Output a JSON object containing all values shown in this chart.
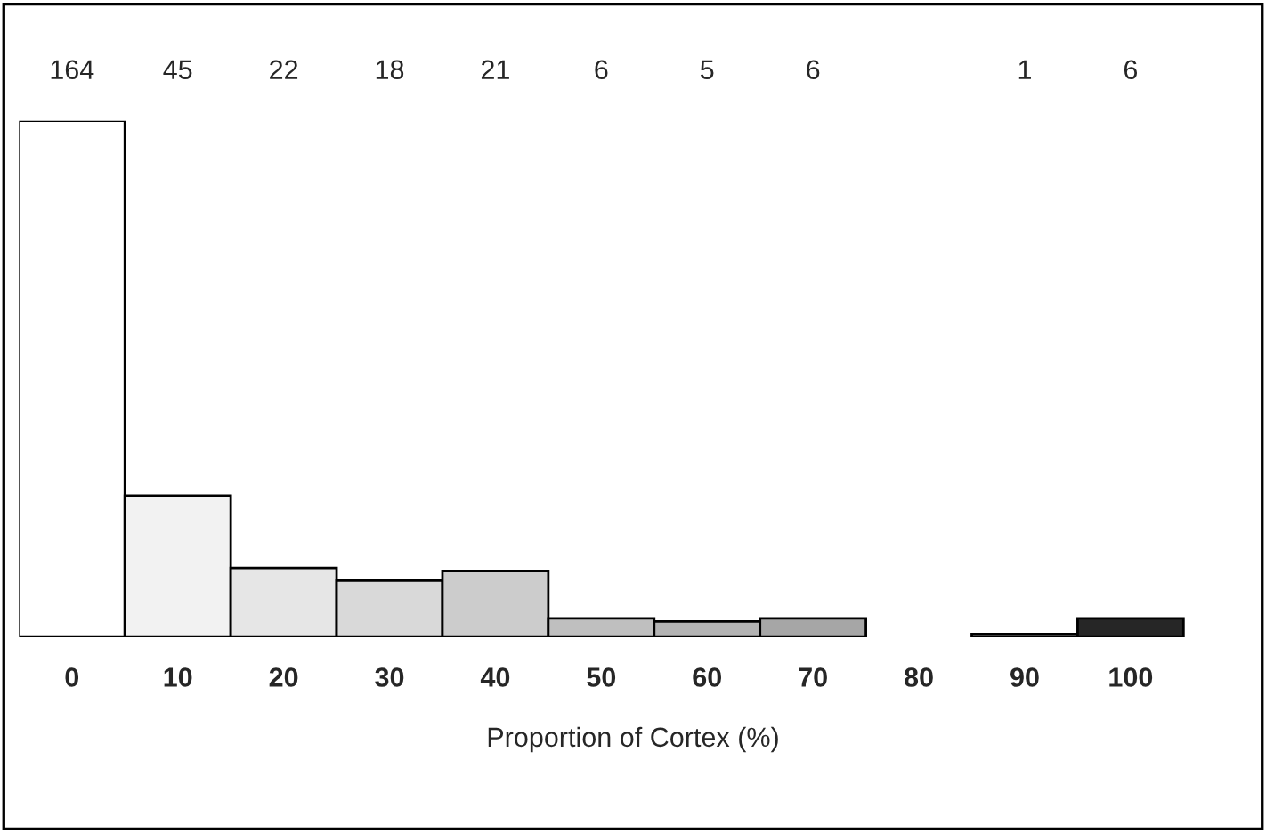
{
  "chart_data": {
    "type": "bar",
    "xlabel": "Proportion of Cortex (%)",
    "categories": [
      "0",
      "10",
      "20",
      "30",
      "40",
      "50",
      "60",
      "70",
      "80",
      "90",
      "100"
    ],
    "values": [
      164,
      45,
      22,
      18,
      21,
      6,
      5,
      6,
      null,
      1,
      6
    ],
    "value_labels": [
      "164",
      "45",
      "22",
      "18",
      "21",
      "6",
      "5",
      "6",
      null,
      "1",
      "6"
    ],
    "colors": [
      "#ffffff",
      "#f2f2f2",
      "#e6e6e6",
      "#d9d9d9",
      "#cccccc",
      "#bfbfbf",
      "#b3b3b3",
      "#a6a6a6",
      "#999999",
      "#555555",
      "#262626"
    ],
    "grid": false,
    "legend": false
  }
}
